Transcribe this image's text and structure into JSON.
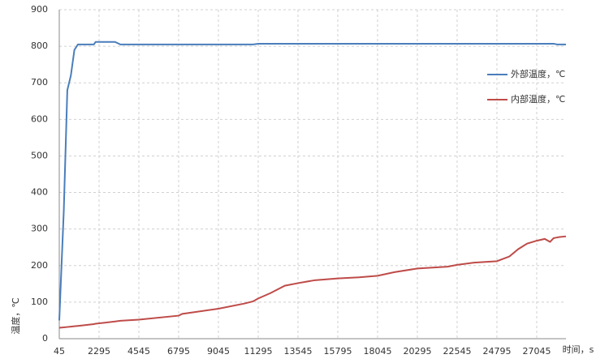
{
  "chart_data": {
    "type": "line",
    "x_label": "时间，s",
    "y_label": "温度，℃",
    "x": [
      45,
      300,
      500,
      700,
      900,
      1100,
      2000,
      2100,
      3200,
      3500,
      4545,
      6795,
      7000,
      9045,
      10500,
      11000,
      11295,
      12000,
      12800,
      13545,
      14500,
      15795,
      17000,
      18045,
      19000,
      20295,
      22000,
      22545,
      23500,
      24795,
      25500,
      26000,
      26500,
      27045,
      27500,
      27800,
      28000,
      28200,
      28300,
      28700
    ],
    "series": [
      {
        "name": "外部温度，℃",
        "color": "#4a7ebb",
        "values": [
          50,
          350,
          680,
          720,
          790,
          805,
          805,
          812,
          812,
          805,
          805,
          805,
          805,
          805,
          805,
          805,
          807,
          807,
          807,
          807,
          807,
          807,
          807,
          807,
          807,
          807,
          807,
          807,
          807,
          807,
          807,
          807,
          807,
          807,
          807,
          807,
          807,
          805,
          805,
          805
        ]
      },
      {
        "name": "内部温度，℃",
        "color": "#be4b48",
        "values": [
          30,
          31,
          32,
          33,
          34,
          35,
          40,
          41,
          47,
          49,
          52,
          63,
          68,
          82,
          96,
          102,
          110,
          125,
          145,
          152,
          160,
          165,
          168,
          172,
          182,
          192,
          197,
          202,
          208,
          212,
          225,
          245,
          260,
          268,
          273,
          265,
          275,
          277,
          278,
          280
        ]
      }
    ],
    "xlim": [
      45,
      28700
    ],
    "xticks": [
      45,
      2295,
      4545,
      6795,
      9045,
      11295,
      13545,
      15795,
      18045,
      20295,
      22545,
      24795,
      27045
    ],
    "ylim": [
      0,
      900
    ],
    "yticks": [
      0,
      100,
      200,
      300,
      400,
      500,
      600,
      700,
      800,
      900
    ],
    "grid": true,
    "legend": "right"
  }
}
